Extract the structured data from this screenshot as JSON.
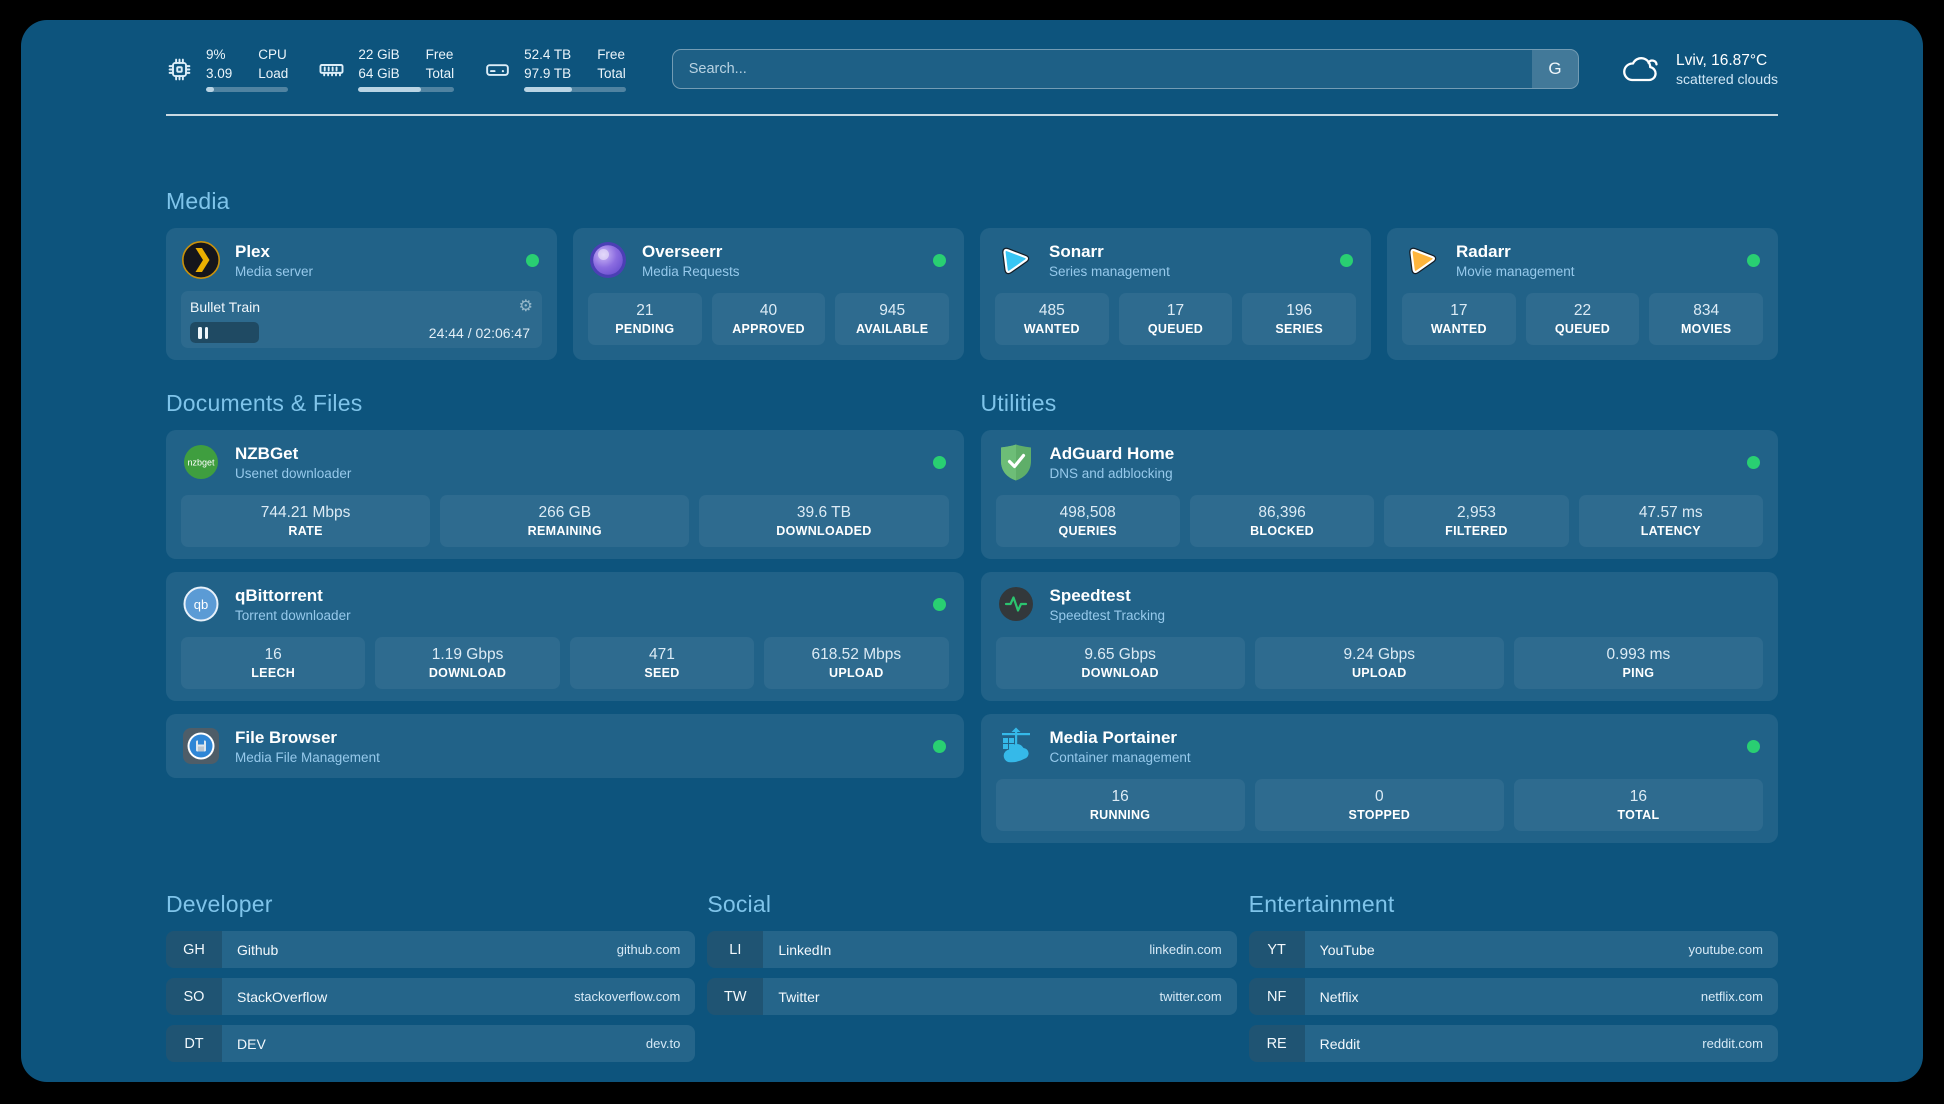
{
  "theme": {
    "page_bg": "#0d547d",
    "accent": "#7fc4ea",
    "status_online": "#29cf72"
  },
  "header": {
    "widgets": [
      {
        "id": "cpu",
        "values": [
          "9%",
          "3.09"
        ],
        "labels": [
          "CPU",
          "Load"
        ],
        "progress": 10
      },
      {
        "id": "memory",
        "values": [
          "22 GiB",
          "64 GiB"
        ],
        "labels": [
          "Free",
          "Total"
        ],
        "progress": 65
      },
      {
        "id": "disk",
        "values": [
          "52.4 TB",
          "97.9 TB"
        ],
        "labels": [
          "Free",
          "Total"
        ],
        "progress": 47
      }
    ],
    "search": {
      "placeholder": "Search...",
      "button": "G"
    },
    "weather": {
      "summary": "Lviv, 16.87°C",
      "condition": "scattered clouds"
    }
  },
  "media": {
    "title": "Media",
    "cards": [
      {
        "title": "Plex",
        "subtitle": "Media server",
        "player": {
          "track": "Bullet Train",
          "time": "24:44 / 02:06:47",
          "progress": 20
        }
      },
      {
        "title": "Overseerr",
        "subtitle": "Media Requests",
        "stats": [
          {
            "value": "21",
            "label": "PENDING"
          },
          {
            "value": "40",
            "label": "APPROVED"
          },
          {
            "value": "945",
            "label": "AVAILABLE"
          }
        ]
      },
      {
        "title": "Sonarr",
        "subtitle": "Series management",
        "stats": [
          {
            "value": "485",
            "label": "WANTED"
          },
          {
            "value": "17",
            "label": "QUEUED"
          },
          {
            "value": "196",
            "label": "SERIES"
          }
        ]
      },
      {
        "title": "Radarr",
        "subtitle": "Movie management",
        "stats": [
          {
            "value": "17",
            "label": "WANTED"
          },
          {
            "value": "22",
            "label": "QUEUED"
          },
          {
            "value": "834",
            "label": "MOVIES"
          }
        ]
      }
    ]
  },
  "documents": {
    "title": "Documents & Files",
    "cards": [
      {
        "title": "NZBGet",
        "subtitle": "Usenet downloader",
        "stats": [
          {
            "value": "744.21 Mbps",
            "label": "RATE"
          },
          {
            "value": "266 GB",
            "label": "REMAINING"
          },
          {
            "value": "39.6 TB",
            "label": "DOWNLOADED"
          }
        ]
      },
      {
        "title": "qBittorrent",
        "subtitle": "Torrent downloader",
        "stats": [
          {
            "value": "16",
            "label": "LEECH"
          },
          {
            "value": "1.19 Gbps",
            "label": "DOWNLOAD"
          },
          {
            "value": "471",
            "label": "SEED"
          },
          {
            "value": "618.52 Mbps",
            "label": "UPLOAD"
          }
        ]
      },
      {
        "title": "File Browser",
        "subtitle": "Media File Management"
      }
    ]
  },
  "utilities": {
    "title": "Utilities",
    "cards": [
      {
        "title": "AdGuard Home",
        "subtitle": "DNS and adblocking",
        "stats": [
          {
            "value": "498,508",
            "label": "QUERIES"
          },
          {
            "value": "86,396",
            "label": "BLOCKED"
          },
          {
            "value": "2,953",
            "label": "FILTERED"
          },
          {
            "value": "47.57 ms",
            "label": "LATENCY"
          }
        ]
      },
      {
        "title": "Speedtest",
        "subtitle": "Speedtest Tracking",
        "stats": [
          {
            "value": "9.65 Gbps",
            "label": "DOWNLOAD"
          },
          {
            "value": "9.24 Gbps",
            "label": "UPLOAD"
          },
          {
            "value": "0.993 ms",
            "label": "PING"
          }
        ]
      },
      {
        "title": "Media Portainer",
        "subtitle": "Container management",
        "stats": [
          {
            "value": "16",
            "label": "RUNNING"
          },
          {
            "value": "0",
            "label": "STOPPED"
          },
          {
            "value": "16",
            "label": "TOTAL"
          }
        ]
      }
    ]
  },
  "bookmarks": [
    {
      "title": "Developer",
      "items": [
        {
          "abbr": "GH",
          "name": "Github",
          "url": "github.com"
        },
        {
          "abbr": "SO",
          "name": "StackOverflow",
          "url": "stackoverflow.com"
        },
        {
          "abbr": "DT",
          "name": "DEV",
          "url": "dev.to"
        }
      ]
    },
    {
      "title": "Social",
      "items": [
        {
          "abbr": "LI",
          "name": "LinkedIn",
          "url": "linkedin.com"
        },
        {
          "abbr": "TW",
          "name": "Twitter",
          "url": "twitter.com"
        }
      ]
    },
    {
      "title": "Entertainment",
      "items": [
        {
          "abbr": "YT",
          "name": "YouTube",
          "url": "youtube.com"
        },
        {
          "abbr": "NF",
          "name": "Netflix",
          "url": "netflix.com"
        },
        {
          "abbr": "RE",
          "name": "Reddit",
          "url": "reddit.com"
        }
      ]
    }
  ]
}
